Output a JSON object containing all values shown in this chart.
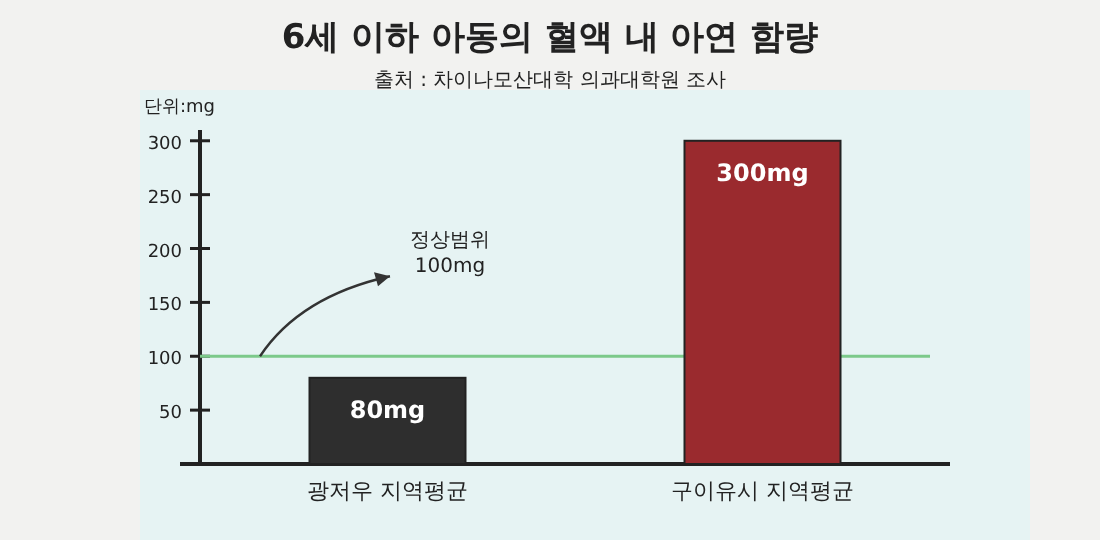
{
  "chart_data": {
    "type": "bar",
    "title": "6세 이하 아동의 혈액 내 아연 함량",
    "subtitle": "출처 : 차이나모산대학 의과대학원 조사",
    "ylabel": "단위:mg",
    "categories": [
      "광저우 지역평균",
      "구이유시 지역평균"
    ],
    "values": [
      80,
      300
    ],
    "colors": [
      "#2e2e2e",
      "#9a2a2e"
    ],
    "value_labels": [
      "80mg",
      "300mg"
    ],
    "ylim": [
      0,
      310
    ],
    "yticks": [
      50,
      100,
      150,
      200,
      250,
      300
    ],
    "ref_lines": [
      {
        "axis": "y",
        "value": 100,
        "label": "정상범위\n100mg",
        "color": "#7cc98a"
      }
    ],
    "grid": false
  }
}
